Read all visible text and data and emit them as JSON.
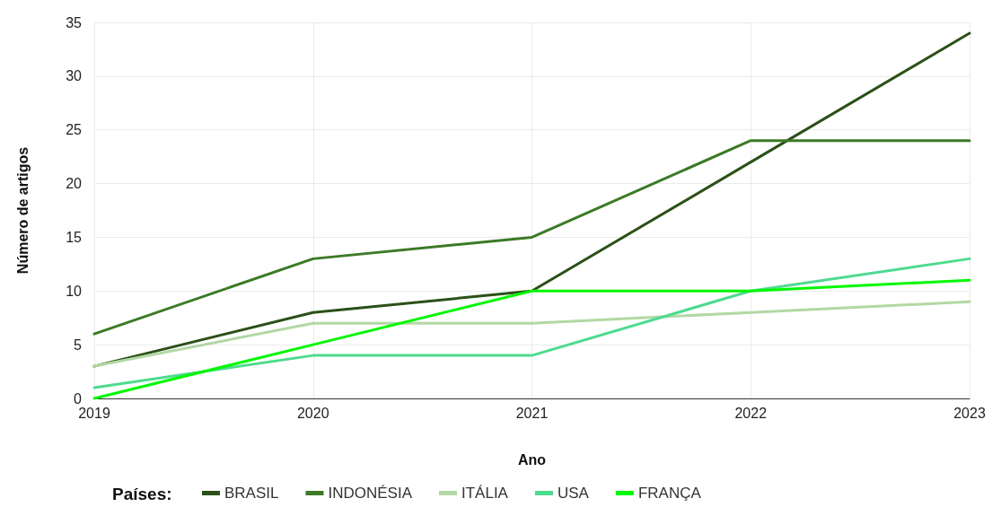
{
  "chart_data": {
    "type": "line",
    "xlabel": "Ano",
    "ylabel": "Número de artigos",
    "legend_title": "Países:",
    "x": [
      2019,
      2020,
      2021,
      2022,
      2023
    ],
    "xlim": [
      2019,
      2023
    ],
    "xticks": [
      2019,
      2020,
      2021,
      2022,
      2023
    ],
    "ylim": [
      0,
      35
    ],
    "yticks": [
      0,
      5,
      10,
      15,
      20,
      25,
      30,
      35
    ],
    "grid": true,
    "legend": "bottom",
    "marker": "none",
    "line_style": "solid",
    "series": [
      {
        "name": "BRASIL",
        "color": "#2b5018",
        "values": [
          3,
          8,
          10,
          22,
          34
        ]
      },
      {
        "name": "INDONÉSIA",
        "color": "#3c7a26",
        "values": [
          6,
          13,
          15,
          24,
          24
        ]
      },
      {
        "name": "ITÁLIA",
        "color": "#b2d8a4",
        "values": [
          3,
          7,
          7,
          8,
          9
        ]
      },
      {
        "name": "USA",
        "color": "#4ddb8f",
        "values": [
          1,
          4,
          4,
          10,
          13
        ]
      },
      {
        "name": "FRANÇA",
        "color": "#00f700",
        "values": [
          0,
          5,
          10,
          10,
          11
        ]
      }
    ]
  }
}
